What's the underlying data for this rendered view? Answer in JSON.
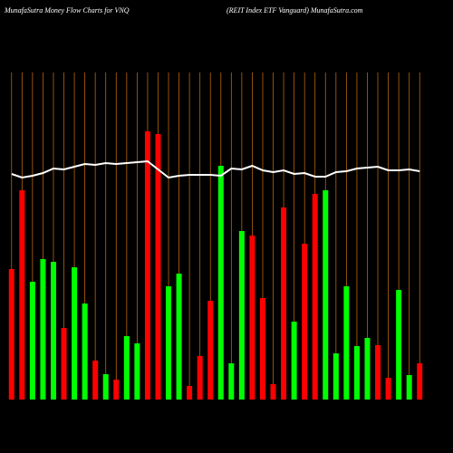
{
  "chart_data": {
    "type": "bar",
    "title": "MunafaSutra  Money Flow  Charts for VNQ",
    "subtitle": "(REIT Index ETF Vanguard) MunafaSutra.com",
    "categories": [
      null,
      null,
      null,
      null,
      null,
      null,
      null,
      null,
      null,
      null,
      null,
      null,
      null,
      null,
      null,
      null,
      null,
      null,
      null,
      null,
      null,
      null,
      null,
      null,
      null,
      null,
      null,
      null,
      null,
      null,
      null,
      null,
      null,
      null,
      null,
      null,
      null,
      null,
      null,
      null
    ],
    "series": [
      {
        "values": [
          144,
          231,
          130,
          155,
          152,
          79,
          146,
          106,
          43,
          28,
          22,
          70,
          62,
          296,
          293,
          125,
          139,
          15,
          48,
          109,
          258,
          40,
          186,
          181,
          112,
          17,
          212,
          86,
          172,
          227,
          231,
          51,
          125,
          59,
          68,
          60,
          24,
          121,
          27,
          40
        ],
        "colors": [
          "#ff0000",
          "#ff0000",
          "#00ff00",
          "#00ff00",
          "#00ff00",
          "#ff0000",
          "#00ff00",
          "#00ff00",
          "#ff0000",
          "#00ff00",
          "#ff0000",
          "#00ff00",
          "#00ff00",
          "#ff0000",
          "#ff0000",
          "#00ff00",
          "#00ff00",
          "#ff0000",
          "#ff0000",
          "#ff0000",
          "#00ff00",
          "#00ff00",
          "#00ff00",
          "#ff0000",
          "#ff0000",
          "#ff0000",
          "#ff0000",
          "#00ff00",
          "#ff0000",
          "#ff0000",
          "#00ff00",
          "#00ff00",
          "#00ff00",
          "#00ff00",
          "#00ff00",
          "#ff0000",
          "#ff0000",
          "#00ff00",
          "#00ff00",
          "#ff0000"
        ]
      },
      {
        "type": "line",
        "color": "#ffffff",
        "values": [
          249,
          245,
          247,
          250,
          255,
          254,
          257,
          260,
          259,
          261,
          260,
          261,
          262,
          263,
          254,
          245,
          247,
          248,
          248,
          248,
          247,
          255,
          254,
          258,
          253,
          251,
          253,
          249,
          250,
          246,
          246,
          251,
          252,
          255,
          256,
          257,
          253,
          253,
          254,
          252
        ]
      }
    ],
    "grid_color": "#b8660b",
    "ylim": [
      0,
      361
    ]
  }
}
